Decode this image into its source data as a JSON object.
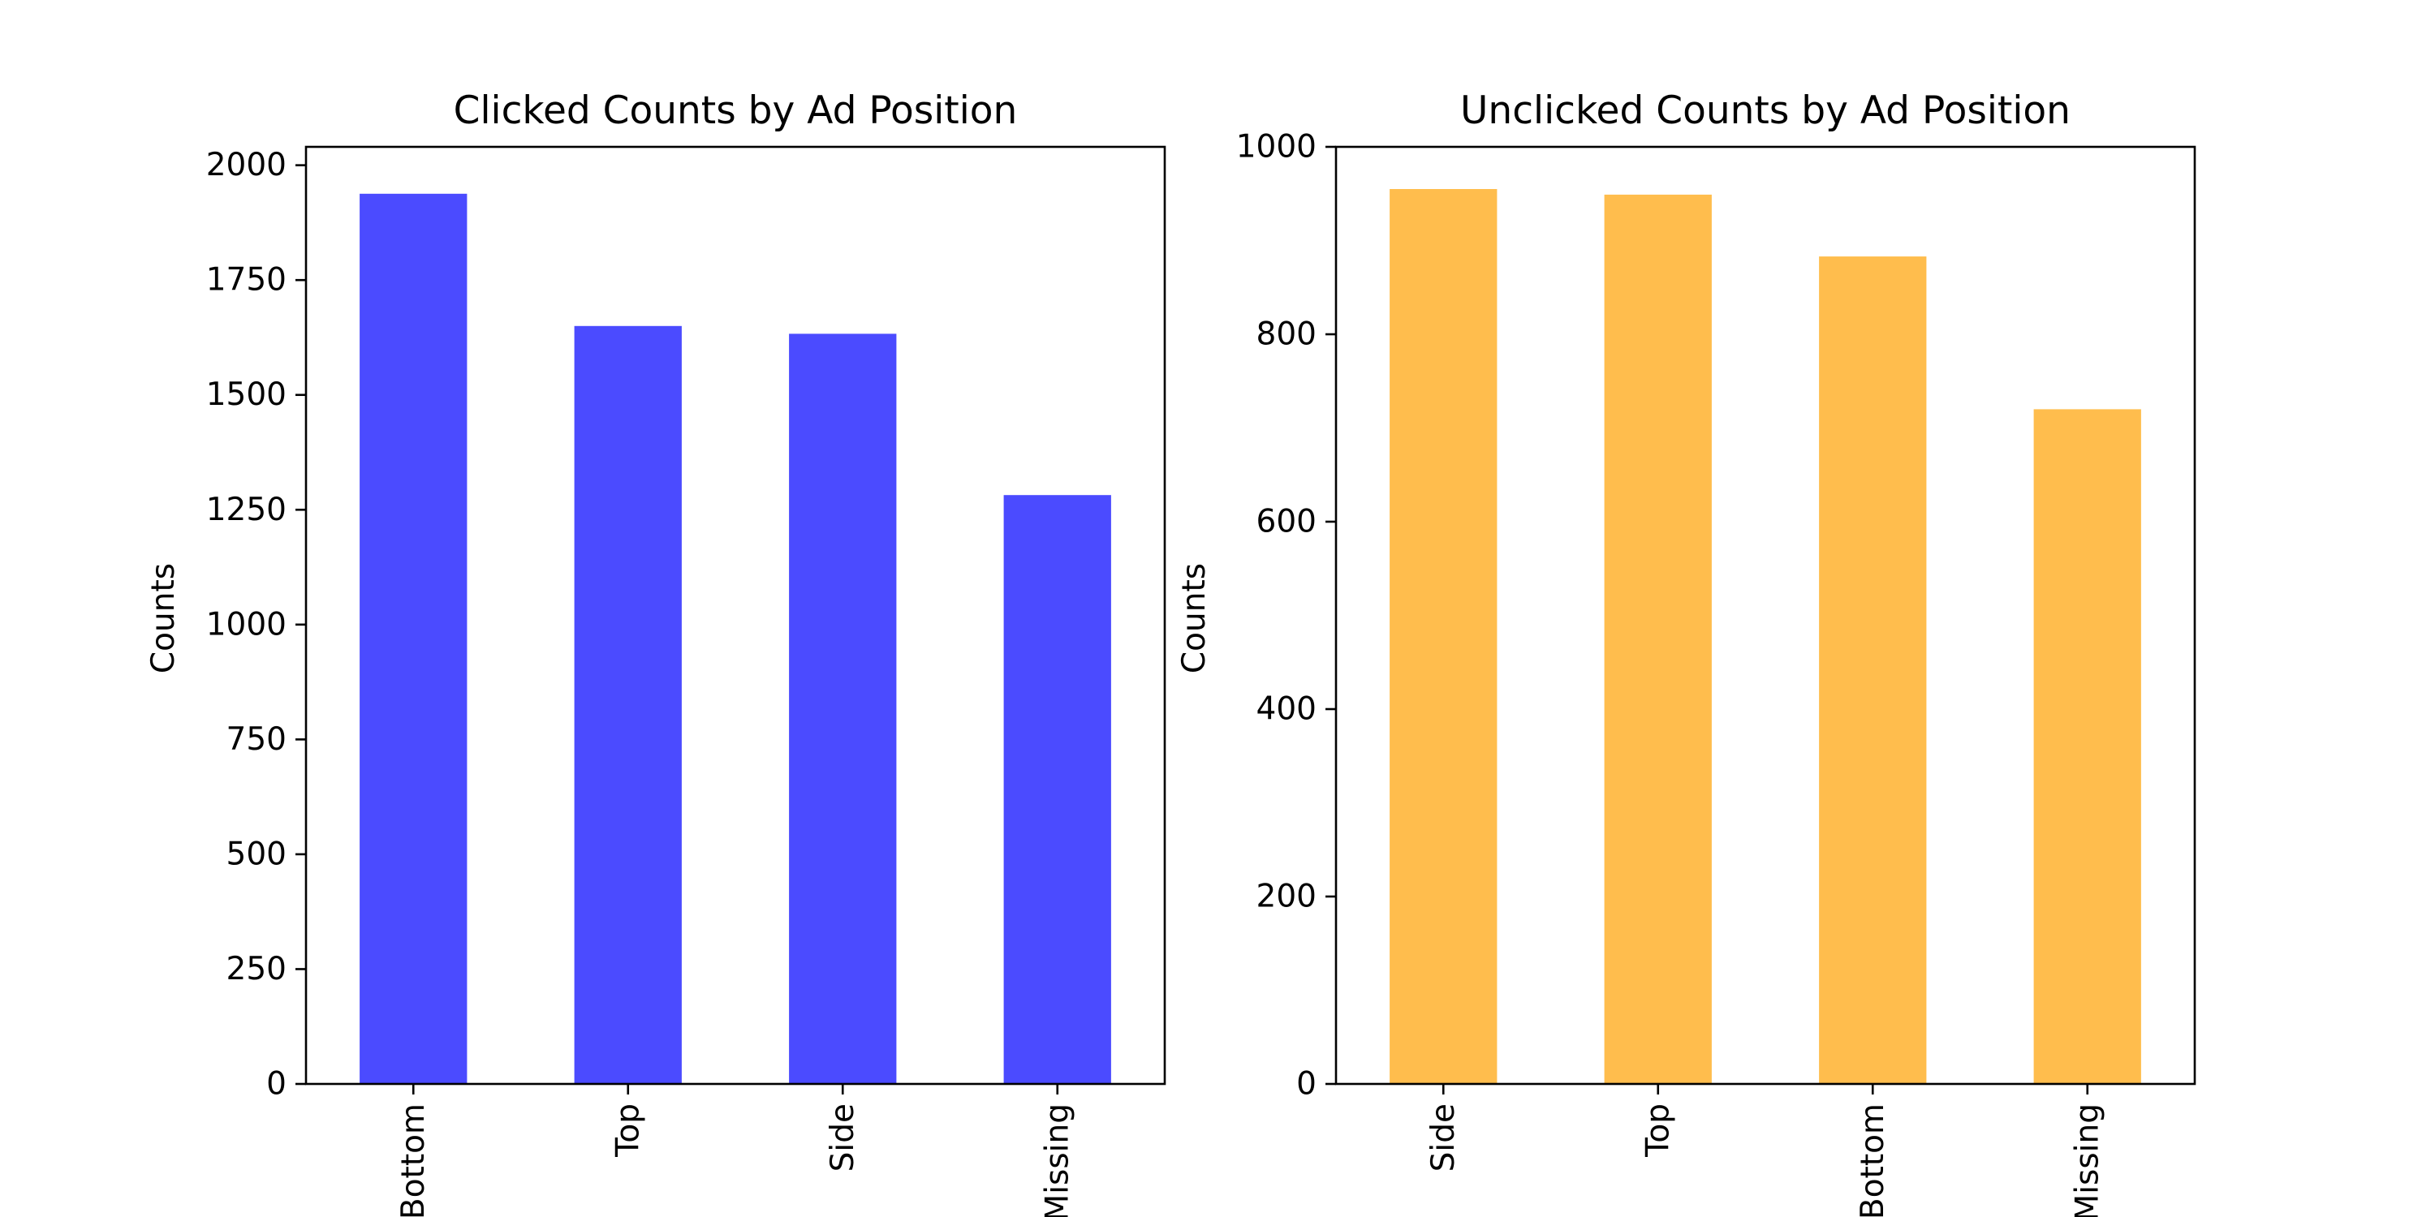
{
  "chart_data": [
    {
      "type": "bar",
      "title": "Clicked Counts by Ad Position",
      "xlabel": "",
      "ylabel": "Counts",
      "categories": [
        "Bottom",
        "Top",
        "Side",
        "Missing"
      ],
      "values": [
        1938,
        1650,
        1633,
        1282
      ],
      "ylim": [
        0,
        2040
      ],
      "yticks": [
        0,
        250,
        500,
        750,
        1000,
        1250,
        1500,
        1750,
        2000
      ],
      "grid": false,
      "color": "#4b4bff"
    },
    {
      "type": "bar",
      "title": "Unclicked Counts by Ad Position",
      "xlabel": "",
      "ylabel": "Counts",
      "categories": [
        "Side",
        "Top",
        "Bottom",
        "Missing"
      ],
      "values": [
        955,
        949,
        883,
        720
      ],
      "ylim": [
        0,
        1000
      ],
      "yticks": [
        0,
        200,
        400,
        600,
        800,
        1000
      ],
      "grid": false,
      "color": "#ffbd4d"
    }
  ]
}
